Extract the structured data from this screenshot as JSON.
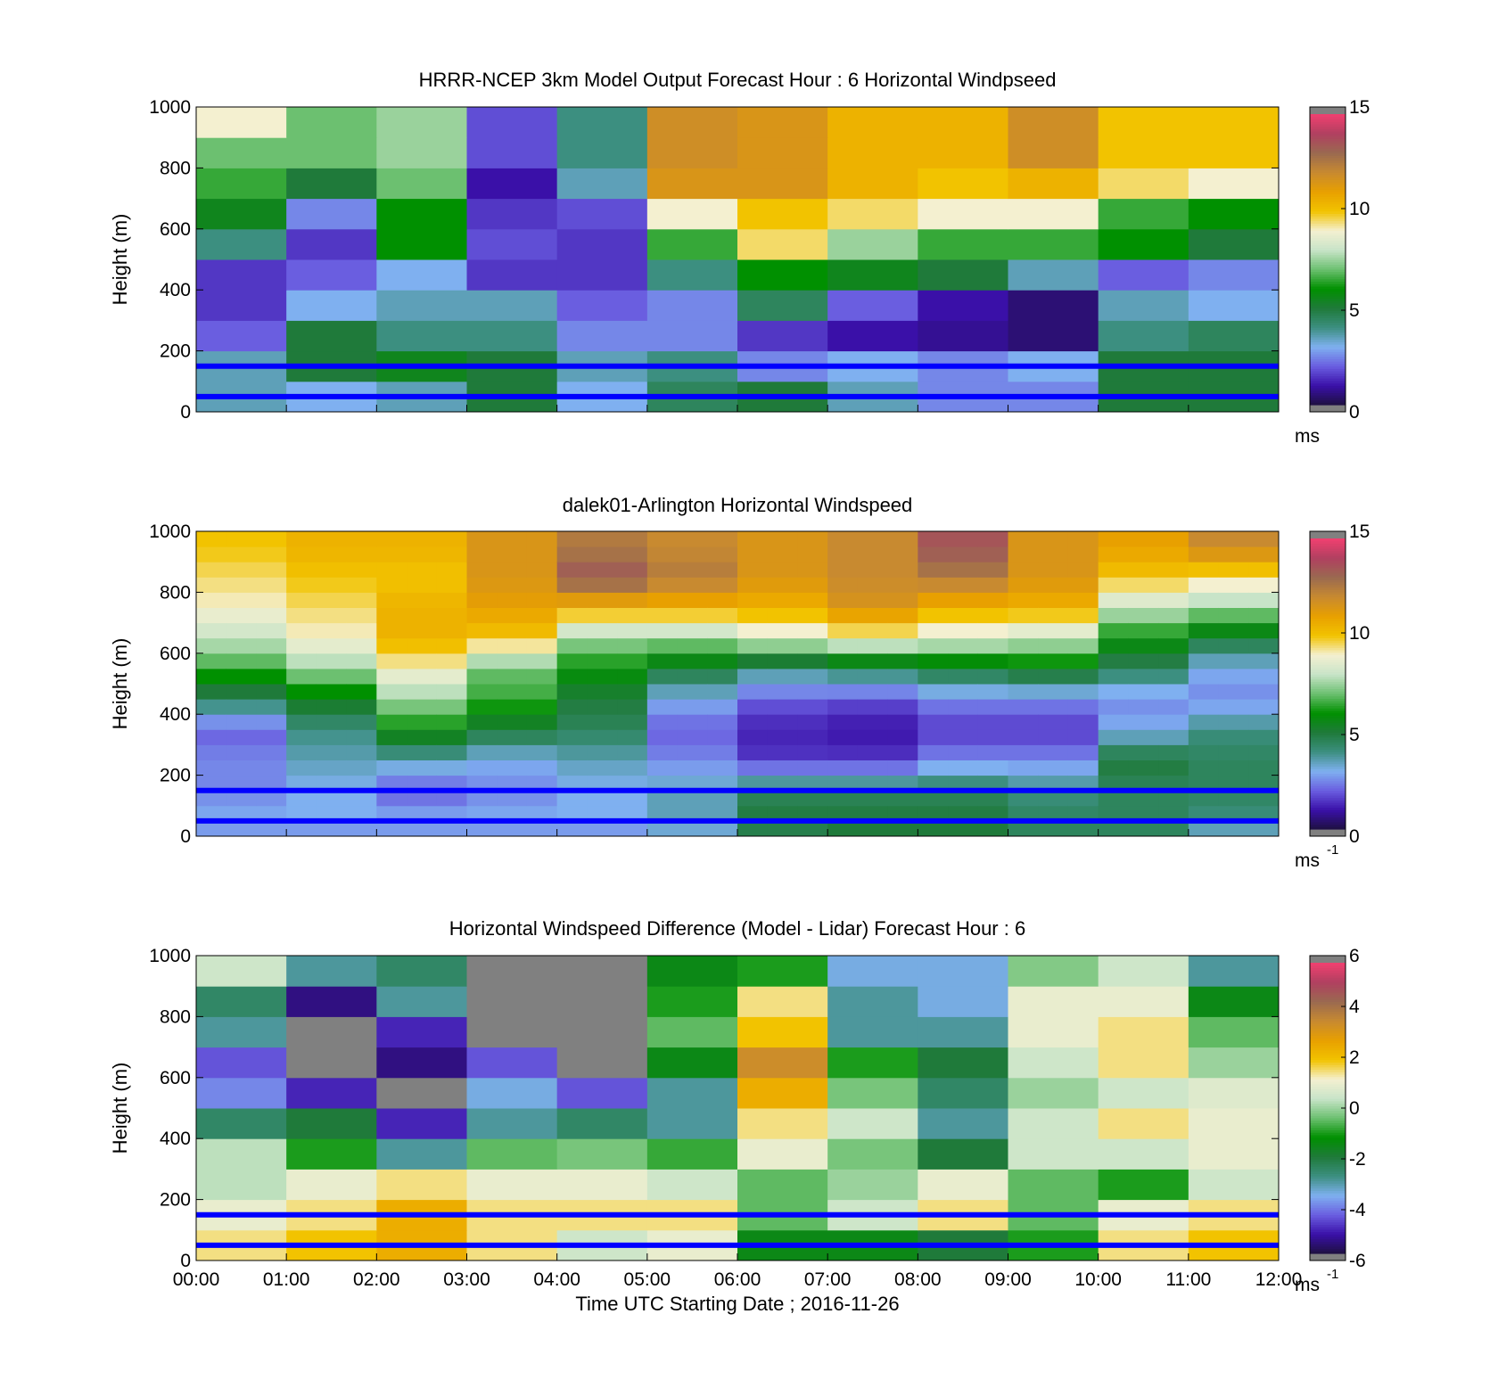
{
  "colors": {
    "windspeed_colormap": [
      "#1e1040",
      "#3a10a8",
      "#6a5ee0",
      "#7fb0f0",
      "#3c8f80",
      "#1f7a3a",
      "#009000",
      "#6cc070",
      "#c8e4c8",
      "#f4f0d0",
      "#f2c300",
      "#e8a000",
      "#c88a30",
      "#9a6a50",
      "#b04060",
      "#f04070"
    ],
    "difference_colormap": [
      "#1e1040",
      "#3a10a8",
      "#6a5ee0",
      "#7fb0f0",
      "#3c8f80",
      "#1f7a3a",
      "#009000",
      "#6cc070",
      "#c8e4c8",
      "#f4f0d0",
      "#f2c300",
      "#e8a000",
      "#c88a30",
      "#9a6a50",
      "#b04060",
      "#f04070"
    ],
    "missing": "#808080",
    "reference_lines": "#0000ff"
  },
  "chart_data": [
    {
      "type": "heatmap",
      "id": "model",
      "title": "HRRR-NCEP 3km Model Output   Forecast Hour : 6 Horizontal Windpseed",
      "xlabel": "",
      "ylabel": "Height (m)",
      "ylim": [
        0,
        1000
      ],
      "yticks": [
        "0",
        "200",
        "400",
        "600",
        "800",
        "1000"
      ],
      "xticks": [
        "",
        "",
        "",
        "",
        "",
        "",
        "",
        "",
        "",
        "",
        "",
        "",
        ""
      ],
      "colorbar": {
        "min": 0,
        "max": 15,
        "ticks": [
          "0",
          "5",
          "10",
          "15"
        ],
        "unit": "ms",
        "unit_sup": ""
      },
      "reference_lines_m": [
        50,
        150
      ],
      "x_range_hours": [
        0,
        12
      ],
      "column_hours": [
        0,
        1,
        2,
        3,
        4,
        5,
        6,
        7,
        8,
        9,
        10,
        11
      ],
      "row_height_m": 100,
      "values": [
        [
          3.5,
          3.0,
          3.5,
          5.0,
          3.0,
          4.5,
          5.0,
          3.5,
          2.5,
          2.5,
          5.0,
          5.0
        ],
        [
          3.5,
          5.0,
          5.5,
          5.0,
          3.5,
          4.0,
          2.5,
          3.0,
          2.5,
          3.0,
          5.0,
          5.0
        ],
        [
          2.0,
          5.0,
          4.0,
          4.0,
          2.5,
          2.5,
          1.5,
          1.0,
          0.8,
          0.5,
          4.0,
          4.5
        ],
        [
          1.5,
          3.0,
          3.5,
          3.5,
          2.0,
          2.5,
          4.5,
          2.0,
          1.0,
          0.5,
          3.5,
          3.0
        ],
        [
          1.5,
          2.0,
          3.0,
          1.5,
          1.5,
          4.0,
          6.0,
          5.5,
          5.0,
          3.5,
          2.0,
          2.5
        ],
        [
          4.0,
          1.5,
          6.0,
          1.8,
          1.5,
          6.5,
          9.5,
          7.5,
          6.5,
          6.5,
          6.0,
          5.0
        ],
        [
          5.5,
          2.5,
          6.0,
          1.5,
          1.8,
          9.0,
          10.0,
          9.5,
          9.0,
          9.0,
          6.5,
          6.0
        ],
        [
          6.5,
          5.0,
          7.0,
          1.0,
          3.5,
          11.5,
          11.5,
          10.5,
          10.0,
          10.5,
          9.5,
          9.0
        ],
        [
          7.0,
          7.0,
          7.5,
          1.8,
          4.0,
          11.8,
          11.5,
          10.5,
          10.5,
          11.8,
          10.0,
          10.0
        ],
        [
          9.0,
          7.0,
          7.5,
          1.8,
          4.0,
          11.8,
          11.5,
          10.5,
          10.5,
          11.8,
          10.0,
          10.0
        ]
      ]
    },
    {
      "type": "heatmap",
      "id": "lidar",
      "title": "dalek01-Arlington  Horizontal Windspeed",
      "xlabel": "",
      "ylabel": "Height (m)",
      "ylim": [
        0,
        1000
      ],
      "yticks": [
        "0",
        "200",
        "400",
        "600",
        "800",
        "1000"
      ],
      "xticks": [
        "",
        "",
        "",
        "",
        "",
        "",
        "",
        "",
        "",
        "",
        "",
        "",
        ""
      ],
      "colorbar": {
        "min": 0,
        "max": 15,
        "ticks": [
          "0",
          "5",
          "10",
          "15"
        ],
        "unit": "ms",
        "unit_sup": "-1"
      },
      "reference_lines_m": [
        50,
        150
      ],
      "x_range_hours": [
        0,
        12
      ],
      "column_hours": [
        0,
        1,
        2,
        3,
        4,
        5,
        6,
        7,
        8,
        9,
        10,
        11,
        12
      ],
      "profile_heights_m": [
        0,
        50,
        150,
        250,
        350,
        450,
        550,
        650,
        750,
        850,
        950,
        1000
      ],
      "profiles": [
        [
          2.5,
          3.0,
          2.5,
          2.5,
          2.0,
          4.5,
          6.5,
          8.0,
          9.0,
          9.5,
          10.0,
          10.0
        ],
        [
          2.5,
          3.0,
          3.0,
          3.5,
          4.0,
          5.5,
          7.5,
          9.0,
          9.5,
          10.0,
          10.5,
          10.5
        ],
        [
          2.5,
          3.0,
          2.0,
          3.5,
          6.0,
          7.5,
          9.0,
          10.5,
          10.5,
          10.0,
          10.5,
          10.5
        ],
        [
          2.5,
          3.0,
          2.5,
          3.0,
          5.0,
          6.5,
          7.0,
          10.0,
          11.0,
          11.5,
          11.5,
          11.5
        ],
        [
          2.5,
          3.0,
          3.0,
          3.5,
          4.5,
          5.0,
          6.0,
          7.5,
          10.5,
          13.5,
          12.5,
          12.5
        ],
        [
          3.0,
          3.5,
          3.5,
          2.5,
          2.0,
          3.0,
          5.0,
          7.5,
          10.5,
          12.5,
          12.0,
          12.0
        ],
        [
          4.5,
          5.0,
          4.5,
          1.5,
          1.2,
          2.0,
          4.0,
          8.5,
          10.5,
          11.5,
          11.5,
          11.5
        ],
        [
          5.0,
          5.0,
          4.5,
          1.5,
          1.0,
          1.8,
          4.5,
          9.0,
          11.5,
          12.0,
          12.0,
          12.0
        ],
        [
          5.0,
          5.0,
          4.5,
          2.5,
          1.5,
          2.5,
          5.0,
          8.5,
          10.5,
          12.5,
          13.5,
          13.5
        ],
        [
          4.5,
          4.5,
          4.0,
          2.5,
          1.5,
          2.5,
          5.5,
          8.0,
          10.5,
          11.5,
          11.5,
          11.5
        ],
        [
          4.5,
          4.5,
          4.5,
          5.0,
          3.0,
          2.5,
          4.5,
          6.0,
          8.0,
          10.0,
          11.0,
          11.0
        ],
        [
          3.0,
          4.0,
          4.5,
          4.5,
          4.0,
          2.5,
          3.0,
          5.0,
          7.5,
          9.5,
          12.0,
          12.0
        ],
        [
          2.5,
          3.5,
          4.0,
          3.5,
          2.0,
          3.0,
          4.5,
          5.5,
          8.5,
          10.0,
          13.5,
          13.5
        ]
      ]
    },
    {
      "type": "heatmap",
      "id": "difference",
      "title": "Horizontal Windspeed Difference (Model - Lidar) Forecast Hour : 6",
      "xlabel": "Time UTC  Starting Date ; 2016-11-26",
      "ylabel": "Height (m)",
      "ylim": [
        0,
        1000
      ],
      "yticks": [
        "0",
        "200",
        "400",
        "600",
        "800",
        "1000"
      ],
      "xticks": [
        "00:00",
        "01:00",
        "02:00",
        "03:00",
        "04:00",
        "05:00",
        "06:00",
        "07:00",
        "08:00",
        "09:00",
        "10:00",
        "11:00",
        "12:00"
      ],
      "colorbar": {
        "min": -6,
        "max": 6,
        "ticks": [
          "-6",
          "-4",
          "-2",
          "0",
          "2",
          "4",
          "6"
        ],
        "unit": "ms",
        "unit_sup": "-1"
      },
      "reference_lines_m": [
        50,
        150
      ],
      "x_range_hours": [
        0,
        12
      ],
      "column_hours": [
        0,
        1,
        2,
        3,
        4,
        5,
        6,
        7,
        8,
        9,
        10,
        11
      ],
      "row_height_m": 100,
      "values": [
        [
          1.5,
          2.0,
          2.5,
          1.5,
          0.5,
          1.0,
          -1.5,
          -1.5,
          -2.0,
          -1.0,
          1.5,
          2.0
        ],
        [
          1.0,
          1.5,
          2.5,
          1.5,
          1.5,
          1.5,
          -0.5,
          0.5,
          1.5,
          -0.5,
          1.0,
          1.5
        ],
        [
          0.3,
          1.0,
          1.5,
          1.0,
          1.0,
          0.5,
          -0.5,
          0.0,
          1.0,
          -0.5,
          -1.0,
          0.5
        ],
        [
          0.3,
          -1.0,
          -3.0,
          -0.5,
          -0.3,
          -0.8,
          1.0,
          -0.3,
          -2.0,
          0.5,
          0.5,
          1.0
        ],
        [
          -2.5,
          -2.0,
          -5.0,
          -3.0,
          -2.5,
          -3.0,
          1.5,
          0.5,
          -3.0,
          0.5,
          1.5,
          1.0
        ],
        [
          -4.0,
          -5.0,
          null,
          -3.5,
          -4.5,
          -3.0,
          2.5,
          -0.3,
          -2.5,
          0.0,
          0.5,
          0.8
        ],
        [
          -4.5,
          null,
          -5.5,
          -4.5,
          null,
          -1.5,
          3.5,
          -1.0,
          -2.0,
          0.5,
          1.5,
          0.0
        ],
        [
          -3.0,
          null,
          -5.0,
          null,
          null,
          -0.5,
          2.0,
          -3.0,
          -3.0,
          1.0,
          1.5,
          -0.5
        ],
        [
          -2.5,
          -5.5,
          -3.0,
          null,
          null,
          -1.0,
          1.5,
          -3.0,
          -3.5,
          1.0,
          1.0,
          -1.5
        ],
        [
          0.5,
          -3.0,
          -2.5,
          null,
          null,
          -1.5,
          -1.0,
          -3.5,
          -3.5,
          -0.2,
          0.5,
          -3.0
        ]
      ]
    }
  ]
}
